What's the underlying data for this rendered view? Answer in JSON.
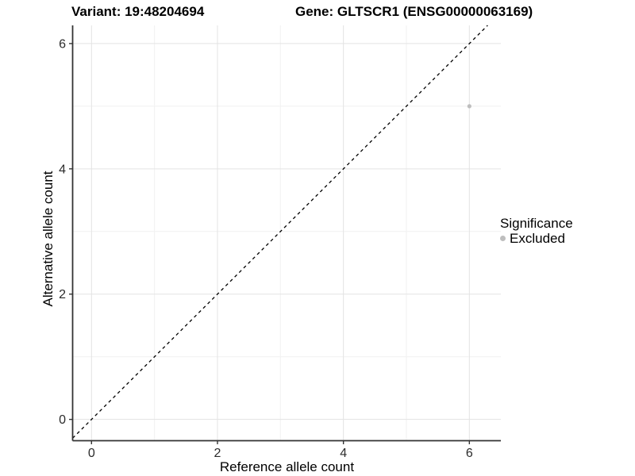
{
  "header": {
    "variant_title": "Variant: 19:48204694",
    "gene_title": "Gene: GLTSCR1 (ENSG00000063169)"
  },
  "legend": {
    "title": "Significance",
    "items": [
      {
        "label": "Excluded",
        "color": "#bebebe"
      }
    ]
  },
  "chart_data": {
    "type": "scatter",
    "xlabel": "Reference allele count",
    "ylabel": "Alternative allele count",
    "xlim": [
      -0.3,
      6.5
    ],
    "ylim": [
      -0.34,
      6.29
    ],
    "x_major_ticks": [
      0,
      2,
      4,
      6
    ],
    "y_major_ticks": [
      0,
      2,
      4,
      6
    ],
    "x_minor_ticks": [
      1,
      3,
      5
    ],
    "y_minor_ticks": [
      1,
      3,
      5
    ],
    "grid": true,
    "legend_position": "right",
    "series": [
      {
        "name": "Excluded",
        "color": "#bebebe",
        "marker": "circle",
        "marker_radius": 2.6,
        "points": [
          [
            6,
            5
          ]
        ]
      }
    ],
    "reference_line": {
      "slope": 1,
      "intercept": 0,
      "style": "dashed",
      "color": "#000000"
    },
    "colors": {
      "grid_major": "#e3e3e3",
      "grid_minor": "#f1f1f1",
      "axis_line": "#333333",
      "tick_text": "#2b2b2b",
      "background": "#ffffff"
    }
  }
}
